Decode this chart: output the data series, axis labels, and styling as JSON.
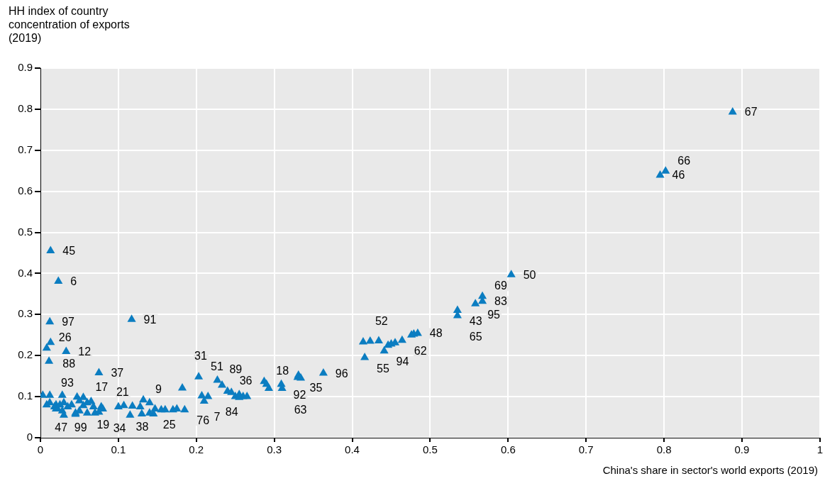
{
  "chart_data": {
    "type": "scatter",
    "ylabel": "HH index of country concentration of exports (2019)",
    "xlabel": "China's share in sector's world exports (2019)",
    "xlim": [
      0,
      1
    ],
    "xticks": [
      0,
      0.1,
      0.2,
      0.3,
      0.4,
      0.5,
      0.6,
      0.7,
      0.8,
      0.9,
      1
    ],
    "ylim": [
      0,
      0.9
    ],
    "yticks": [
      0,
      0.1,
      0.2,
      0.3,
      0.4,
      0.5,
      0.6,
      0.7,
      0.8,
      0.9
    ],
    "grid": true,
    "marker": "triangle",
    "series": [
      {
        "color": "#0b7dc1",
        "x": [
          0.013,
          0.023,
          0.012,
          0.117,
          0.013,
          0.008,
          0.033,
          0.011,
          0.075,
          0.003,
          0.012,
          0.028,
          0.055,
          0.047,
          0.065,
          0.078,
          0.107,
          0.118,
          0.128,
          0.132,
          0.14,
          0.13,
          0.145,
          0.155,
          0.17,
          0.185,
          0.16,
          0.147,
          0.14,
          0.02,
          0.05,
          0.045,
          0.06,
          0.035,
          0.045,
          0.018,
          0.07,
          0.075,
          0.175,
          0.02,
          0.03,
          0.04,
          0.055,
          0.06,
          0.068,
          0.022,
          0.08,
          0.025,
          0.028,
          0.012,
          0.1,
          0.115,
          0.03,
          0.008,
          0.05,
          0.203,
          0.182,
          0.207,
          0.215,
          0.21,
          0.227,
          0.233,
          0.24,
          0.245,
          0.25,
          0.255,
          0.26,
          0.265,
          0.255,
          0.287,
          0.29,
          0.293,
          0.309,
          0.31,
          0.33,
          0.331,
          0.334,
          0.363,
          0.416,
          0.414,
          0.423,
          0.434,
          0.441,
          0.446,
          0.45,
          0.455,
          0.464,
          0.476,
          0.479,
          0.484,
          0.535,
          0.535,
          0.558,
          0.567,
          0.567,
          0.604,
          0.795,
          0.802,
          0.888
        ],
        "values": [
          0.455,
          0.381,
          0.282,
          0.288,
          0.232,
          0.218,
          0.21,
          0.186,
          0.158,
          0.103,
          0.103,
          0.103,
          0.098,
          0.099,
          0.088,
          0.075,
          0.078,
          0.077,
          0.075,
          0.092,
          0.085,
          0.058,
          0.058,
          0.068,
          0.068,
          0.068,
          0.068,
          0.07,
          0.06,
          0.08,
          0.065,
          0.06,
          0.06,
          0.075,
          0.057,
          0.075,
          0.06,
          0.062,
          0.07,
          0.07,
          0.085,
          0.08,
          0.078,
          0.085,
          0.075,
          0.07,
          0.07,
          0.08,
          0.065,
          0.085,
          0.075,
          0.055,
          0.055,
          0.08,
          0.09,
          0.148,
          0.121,
          0.102,
          0.1,
          0.089,
          0.14,
          0.128,
          0.113,
          0.11,
          0.1,
          0.105,
          0.1,
          0.1,
          0.098,
          0.137,
          0.13,
          0.12,
          0.13,
          0.12,
          0.147,
          0.152,
          0.145,
          0.157,
          0.195,
          0.233,
          0.235,
          0.236,
          0.211,
          0.225,
          0.228,
          0.231,
          0.237,
          0.25,
          0.252,
          0.254,
          0.31,
          0.297,
          0.326,
          0.332,
          0.344,
          0.397,
          0.639,
          0.649,
          0.793
        ]
      }
    ],
    "annotations": [
      {
        "text": "45",
        "x": 0.013,
        "y": 0.455
      },
      {
        "text": "6",
        "x": 0.023,
        "y": 0.381
      },
      {
        "text": "97",
        "x": 0.012,
        "y": 0.282
      },
      {
        "text": "91",
        "x": 0.117,
        "y": 0.288
      },
      {
        "text": "88",
        "x": 0.013,
        "y": 0.232
      },
      {
        "text": "26",
        "x": 0.008,
        "y": 0.218
      },
      {
        "text": "12",
        "x": 0.033,
        "y": 0.21
      },
      {
        "text": "93",
        "x": 0.011,
        "y": 0.186
      },
      {
        "text": "37",
        "x": 0.075,
        "y": 0.158
      },
      {
        "text": "47",
        "x": 0.003,
        "y": 0.103
      },
      {
        "text": "99",
        "x": 0.028,
        "y": 0.103
      },
      {
        "text": "17",
        "x": 0.055,
        "y": 0.098
      },
      {
        "text": "34",
        "x": 0.078,
        "y": 0.075
      },
      {
        "text": "38",
        "x": 0.107,
        "y": 0.078
      },
      {
        "text": "9",
        "x": 0.132,
        "y": 0.092
      },
      {
        "text": "25",
        "x": 0.13,
        "y": 0.058
      },
      {
        "text": "76",
        "x": 0.185,
        "y": 0.068
      },
      {
        "text": "19",
        "x": 0.045,
        "y": 0.057
      },
      {
        "text": "21",
        "x": 0.07,
        "y": 0.06
      },
      {
        "text": "51",
        "x": 0.203,
        "y": 0.148
      },
      {
        "text": "31",
        "x": 0.182,
        "y": 0.121
      },
      {
        "text": "7",
        "x": 0.207,
        "y": 0.102
      },
      {
        "text": "84",
        "x": 0.21,
        "y": 0.089
      },
      {
        "text": "89",
        "x": 0.227,
        "y": 0.14
      },
      {
        "text": "36",
        "x": 0.24,
        "y": 0.113
      },
      {
        "text": "18",
        "x": 0.287,
        "y": 0.137
      },
      {
        "text": "92",
        "x": 0.309,
        "y": 0.13
      },
      {
        "text": "63",
        "x": 0.31,
        "y": 0.12
      },
      {
        "text": "35",
        "x": 0.33,
        "y": 0.147
      },
      {
        "text": "96",
        "x": 0.363,
        "y": 0.157
      },
      {
        "text": "55",
        "x": 0.416,
        "y": 0.195
      },
      {
        "text": "52",
        "x": 0.414,
        "y": 0.233
      },
      {
        "text": "94",
        "x": 0.441,
        "y": 0.211
      },
      {
        "text": "62",
        "x": 0.464,
        "y": 0.237
      },
      {
        "text": "48",
        "x": 0.484,
        "y": 0.254
      },
      {
        "text": "43",
        "x": 0.535,
        "y": 0.31
      },
      {
        "text": "65",
        "x": 0.535,
        "y": 0.297
      },
      {
        "text": "95",
        "x": 0.558,
        "y": 0.326
      },
      {
        "text": "83",
        "x": 0.567,
        "y": 0.332
      },
      {
        "text": "69",
        "x": 0.567,
        "y": 0.344
      },
      {
        "text": "50",
        "x": 0.604,
        "y": 0.397
      },
      {
        "text": "46",
        "x": 0.795,
        "y": 0.639
      },
      {
        "text": "66",
        "x": 0.802,
        "y": 0.649
      },
      {
        "text": "67",
        "x": 0.888,
        "y": 0.793
      }
    ]
  }
}
